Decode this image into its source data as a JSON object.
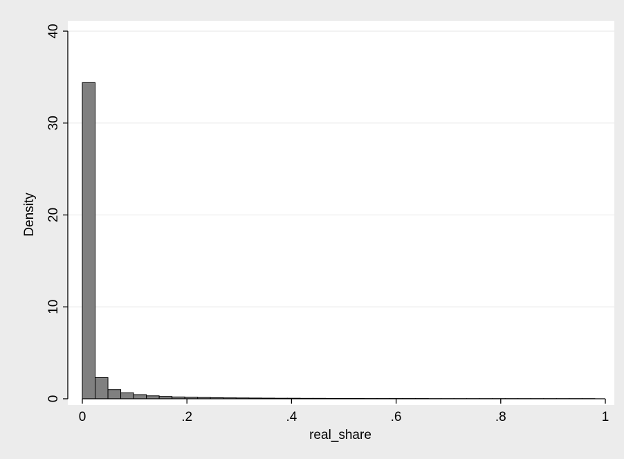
{
  "chart_data": {
    "type": "bar",
    "title": "",
    "xlabel": "real_share",
    "ylabel": "Density",
    "xlim": [
      0,
      1
    ],
    "ylim": [
      0,
      40
    ],
    "grid": "horizontal",
    "bar_color": "#808080",
    "bar_edge_color": "#000000",
    "plot_background": "#ffffff",
    "figure_background": "#ececec",
    "x_ticks": [
      {
        "value": 0,
        "label": "0"
      },
      {
        "value": 0.2,
        "label": ".2"
      },
      {
        "value": 0.4,
        "label": ".4"
      },
      {
        "value": 0.6,
        "label": ".6"
      },
      {
        "value": 0.8,
        "label": ".8"
      },
      {
        "value": 1,
        "label": "1"
      }
    ],
    "y_ticks": [
      {
        "value": 0,
        "label": "0"
      },
      {
        "value": 10,
        "label": "10"
      },
      {
        "value": 20,
        "label": "20"
      },
      {
        "value": 30,
        "label": "30"
      },
      {
        "value": 40,
        "label": "40"
      }
    ],
    "bin_width": 0.0245,
    "bins_start": 0.0,
    "values": [
      34.4,
      2.3,
      1.0,
      0.65,
      0.45,
      0.32,
      0.25,
      0.2,
      0.17,
      0.14,
      0.12,
      0.1,
      0.09,
      0.08,
      0.07,
      0.06,
      0.06,
      0.05,
      0.05,
      0.04,
      0.04,
      0.04,
      0.03,
      0.03,
      0.03,
      0.03,
      0.03,
      0.02,
      0.02,
      0.02,
      0.02,
      0.02,
      0.02,
      0.02,
      0.02,
      0.02,
      0.02,
      0.02,
      0.02,
      0.02
    ]
  }
}
